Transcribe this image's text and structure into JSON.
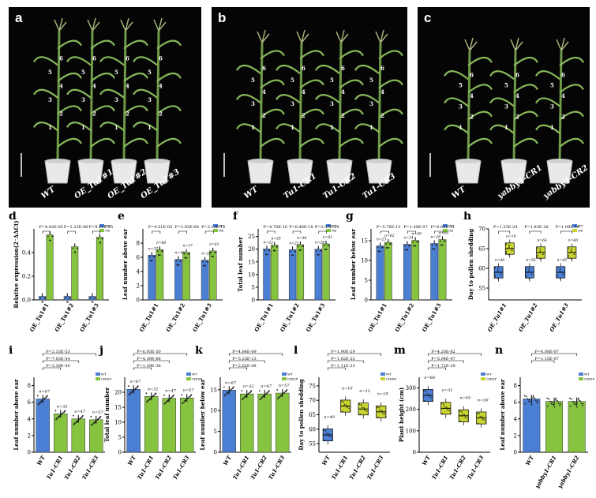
{
  "figure": {
    "panels": {
      "a": {
        "label": "a",
        "plants": [
          "WT",
          "OE_Tu1#1",
          "OE_Tu1#2",
          "OE_Tu1#3"
        ]
      },
      "b": {
        "label": "b",
        "plants": [
          "WT",
          "Tu1-CR1",
          "Tu1-CR2",
          "Tu1-CR3"
        ]
      },
      "c": {
        "label": "c",
        "plants": [
          "WT",
          "yabby1-CR1",
          "yabby1-CR2"
        ]
      }
    },
    "colors": {
      "wt": "#4a7fd4",
      "mutant": "#86c440",
      "box_wt": "#4a7fd4",
      "box_mut": "#c8d430"
    }
  },
  "chart_data": [
    {
      "id": "d",
      "label": "d",
      "type": "bar",
      "ylabel": "Relative expression(2⁻ΔΔCt)",
      "ylim": [
        0,
        0.6
      ],
      "ticks": [
        "0.0",
        "0.2",
        "0.4"
      ],
      "categories": [
        "OE_Tu1#1",
        "OE_Tu1#2",
        "OE_Tu1#3"
      ],
      "series": [
        {
          "name": "WT",
          "values": [
            0.03,
            0.03,
            0.03
          ]
        },
        {
          "name": "OE",
          "values": [
            0.55,
            0.45,
            0.53
          ]
        }
      ],
      "pvalues": [
        "P=4.42E-05",
        "P=1.23E-06",
        "P=9.41E-05"
      ],
      "legend": [
        "WT",
        "OE"
      ]
    },
    {
      "id": "e",
      "label": "e",
      "type": "bar",
      "ylabel": "Leaf number above ear",
      "ylim": [
        0,
        10
      ],
      "ticks": [
        "0",
        "2",
        "4",
        "6",
        "8"
      ],
      "categories": [
        "OE_Tu1#1",
        "OE_Tu1#2",
        "OE_Tu1#3"
      ],
      "series": [
        {
          "name": "WT",
          "values": [
            6.3,
            5.7,
            5.6
          ]
        },
        {
          "name": "OE",
          "values": [
            7.1,
            6.7,
            6.9
          ]
        }
      ],
      "ns": [
        "n=37",
        "n=68",
        "n=16",
        "n=37",
        "n=26",
        "n=61"
      ],
      "pvalues": [
        "P=4.51E-05",
        "P=1.83E-08",
        "P=3.11E-12"
      ],
      "legend": [
        "WT",
        "OE"
      ]
    },
    {
      "id": "f",
      "label": "f",
      "type": "bar",
      "ylabel": "Total leaf number",
      "ylim": [
        0,
        28
      ],
      "ticks": [
        "0",
        "5",
        "10",
        "15",
        "20",
        "25"
      ],
      "categories": [
        "OE_Tu1#1",
        "OE_Tu1#2",
        "OE_Tu1#3"
      ],
      "series": [
        {
          "name": "WT",
          "values": [
            20.1,
            19.8,
            20.0
          ]
        },
        {
          "name": "OE",
          "values": [
            21.6,
            21.8,
            22.1
          ]
        }
      ],
      "ns": [
        "n=22",
        "n=55",
        "n=21",
        "n=38",
        "n=26",
        "n=61"
      ],
      "pvalues": [
        "P=4.70E-16",
        "P=6.46E-18",
        "P=3.57E-24"
      ],
      "legend": [
        "WT",
        "OE"
      ]
    },
    {
      "id": "g",
      "label": "g",
      "type": "bar",
      "ylabel": "Leaf number below ear",
      "ylim": [
        0,
        18
      ],
      "ticks": [
        "0",
        "5",
        "10",
        "15"
      ],
      "categories": [
        "OE_Tu1#1",
        "OE_Tu1#2",
        "OE_Tu1#3"
      ],
      "series": [
        {
          "name": "WT",
          "values": [
            13.7,
            14.1,
            14.3
          ]
        },
        {
          "name": "OE",
          "values": [
            14.6,
            15.1,
            15.3
          ]
        }
      ],
      "ns": [
        "n=23",
        "n=62",
        "n=14",
        "n=50",
        "n=26",
        "n=66"
      ],
      "pvalues": [
        "P=5.76E-13",
        "P=1.40E-07",
        "P=6.00E-11"
      ],
      "legend": [
        "WT",
        "OE"
      ]
    },
    {
      "id": "h",
      "label": "h",
      "type": "box",
      "ylabel": "Day to pollen shedding",
      "ylim": [
        52,
        70
      ],
      "ticks": [
        "55",
        "60",
        "65",
        "70"
      ],
      "categories": [
        "OE_Tu1#1",
        "OE_Tu1#2",
        "OE_Tu1#3"
      ],
      "series": [
        {
          "name": "WT",
          "medians": [
            59,
            59,
            59
          ]
        },
        {
          "name": "OE",
          "medians": [
            65,
            64,
            64
          ]
        }
      ],
      "ns": [
        "n=40",
        "n=19",
        "n=55",
        "n=66",
        "n=45",
        "n=60"
      ],
      "pvalues": [
        "P=1.33E-24",
        "P=1.83E-28",
        "P=1.09E-06"
      ],
      "legend": [
        "WT",
        "OE"
      ]
    },
    {
      "id": "i",
      "label": "i",
      "type": "bar",
      "ylabel": "Leaf number above ear",
      "ylim": [
        0,
        9
      ],
      "ticks": [
        "0",
        "2",
        "4",
        "6",
        "8"
      ],
      "categories": [
        "WT",
        "Tu1-CR1",
        "Tu1-CR2",
        "Tu1-CR3"
      ],
      "values": [
        6.4,
        4.6,
        4.0,
        3.9
      ],
      "ns": [
        "n=67",
        "n=32",
        "n=47",
        "n=57"
      ],
      "pvalues": [
        "P=2.33E-53",
        "P=7.03E-54",
        "P=3.39E-30"
      ],
      "legend": [
        "WT",
        "CRISPR"
      ]
    },
    {
      "id": "j",
      "label": "j",
      "type": "bar",
      "ylabel": "Total leaf number",
      "ylim": [
        0,
        25
      ],
      "ticks": [
        "0",
        "5",
        "10",
        "15",
        "20"
      ],
      "categories": [
        "WT",
        "Tu1-CR1",
        "Tu1-CR2",
        "Tu1-CR3"
      ],
      "values": [
        21.0,
        18.6,
        18.0,
        18.1
      ],
      "ns": [
        "n=67",
        "n=32",
        "n=47",
        "n=57"
      ],
      "pvalues": [
        "P=6.93E-50",
        "P=4.30E-66",
        "P=1.59E-38"
      ],
      "legend": [
        "WT",
        "CRISPR"
      ]
    },
    {
      "id": "k",
      "label": "k",
      "type": "bar",
      "ylabel": "Leaf number below ear",
      "ylim": [
        0,
        18
      ],
      "ticks": [
        "0",
        "5",
        "10",
        "15"
      ],
      "categories": [
        "WT",
        "Tu1-CR1",
        "Tu1-CR2",
        "Tu1-CR3"
      ],
      "values": [
        14.9,
        14.0,
        14.0,
        14.2
      ],
      "ns": [
        "n=67",
        "n=32",
        "n=47",
        "n=57"
      ],
      "pvalues": [
        "P=4.84E-09",
        "P=5.25E-13",
        "P=2.62E-08"
      ],
      "legend": [
        "WT",
        "CRISPR"
      ]
    },
    {
      "id": "l",
      "label": "l",
      "type": "box",
      "ylabel": "Day to pollen shedding",
      "ylim": [
        52,
        78
      ],
      "ticks": [
        "55",
        "60",
        "65",
        "70",
        "75"
      ],
      "categories": [
        "WT",
        "Tu1-CR1",
        "Tu1-CR2",
        "Tu1-CR3"
      ],
      "medians": [
        58,
        68,
        67,
        66
      ],
      "ns": [
        "n=49",
        "n=19",
        "n=12",
        "n=19"
      ],
      "pvalues": [
        "P=1.90E-29",
        "P=1.02E-25",
        "P=1.11E-23"
      ],
      "legend": [
        "WT",
        "CRISPR"
      ]
    },
    {
      "id": "m",
      "label": "m",
      "type": "box",
      "ylabel": "Plant height (cm)",
      "ylim": [
        0,
        350
      ],
      "ticks": [
        "0",
        "100",
        "200",
        "300"
      ],
      "categories": [
        "WT",
        "Tu1-CR1",
        "Tu1-CR2",
        "Tu1-CR3"
      ],
      "medians": [
        265,
        205,
        170,
        160
      ],
      "ns": [
        "n=68",
        "n=31",
        "n=45",
        "n=50"
      ],
      "pvalues": [
        "P=4.20E-82",
        "P=5.04E-47",
        "P=1.72E-29"
      ],
      "legend": [
        "WT",
        "CRISPR"
      ]
    },
    {
      "id": "n",
      "label": "n",
      "type": "bar",
      "ylabel": "Leaf number above ear",
      "ylim": [
        0,
        9
      ],
      "ticks": [
        "0",
        "2",
        "4",
        "6",
        "8"
      ],
      "categories": [
        "WT",
        "yabby1-CR1",
        "yabby1-CR2"
      ],
      "values": [
        6.4,
        6.1,
        6.1
      ],
      "pvalues": [
        "P=4.08E-07",
        "P=1.15E-07"
      ],
      "legend": [
        "WT",
        "CRISPR"
      ]
    }
  ]
}
